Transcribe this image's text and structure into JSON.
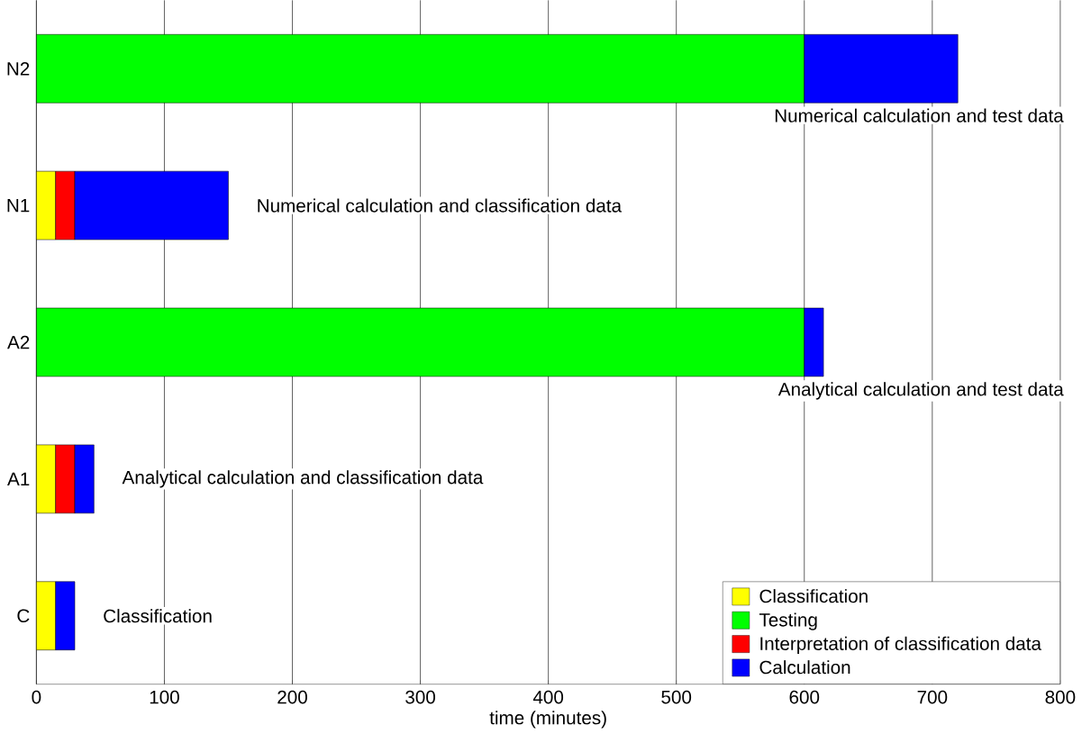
{
  "chart_data": {
    "type": "bar",
    "orientation": "horizontal",
    "stacked": true,
    "categories": [
      "N2",
      "N1",
      "A2",
      "A1",
      "C"
    ],
    "series": [
      {
        "name": "Classification",
        "color": "#ffff00",
        "values": [
          null,
          15,
          null,
          15,
          15
        ]
      },
      {
        "name": "Testing",
        "color": "#00ff00",
        "values": [
          600,
          null,
          600,
          null,
          null
        ]
      },
      {
        "name": "Interpretation of classification data",
        "color": "#ff0000",
        "values": [
          null,
          15,
          null,
          15,
          null
        ]
      },
      {
        "name": "Calculation",
        "color": "#0000ff",
        "values": [
          120,
          120,
          15,
          15,
          15
        ]
      }
    ],
    "xlabel": "time (minutes)",
    "xlim": [
      0,
      800
    ],
    "xticks": [
      0,
      100,
      200,
      300,
      400,
      500,
      600,
      700,
      800
    ],
    "grid": "x",
    "legend": "bottom right",
    "annotations": [
      {
        "text": "Numerical calculation and test data",
        "x": 720,
        "y": "N2"
      },
      {
        "text": "Numerical calculation and classification data",
        "x": 150,
        "y": "N1"
      },
      {
        "text": "Analytical calculation and test data",
        "x": 615,
        "y": "A2"
      },
      {
        "text": "Analytical calculation and classification data",
        "x": 45,
        "y": "A1"
      },
      {
        "text": "Classification",
        "x": 30,
        "y": "C"
      }
    ]
  }
}
